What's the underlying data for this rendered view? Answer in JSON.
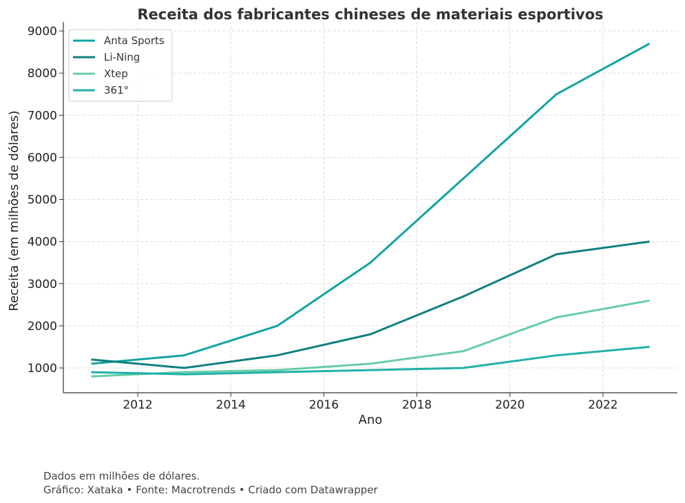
{
  "chart_data": {
    "type": "line",
    "title": "Receita dos fabricantes chineses de materiais esportivos",
    "xlabel": "Ano",
    "ylabel": "Receita (em milhões de dólares)",
    "x": [
      2011,
      2013,
      2015,
      2017,
      2019,
      2021,
      2023
    ],
    "xlim": [
      2010.4,
      2023.6
    ],
    "ylim": [
      400,
      9000
    ],
    "xticks": [
      2012,
      2014,
      2016,
      2018,
      2020,
      2022
    ],
    "yticks": [
      1000,
      2000,
      3000,
      4000,
      5000,
      6000,
      7000,
      8000,
      9000
    ],
    "grid": true,
    "legend_position": "top-left",
    "series": [
      {
        "name": "Anta Sports",
        "color": "#12a3a3",
        "values": [
          1100,
          1300,
          2000,
          3500,
          5500,
          7500,
          8700
        ]
      },
      {
        "name": "Li-Ning",
        "color": "#0f7f7f",
        "values": [
          1200,
          1000,
          1300,
          1800,
          2700,
          3700,
          4000
        ]
      },
      {
        "name": "Xtep",
        "color": "#66ccaa",
        "values": [
          800,
          900,
          950,
          1100,
          1400,
          2200,
          2600
        ]
      },
      {
        "name": "361°",
        "color": "#20b0a8",
        "values": [
          900,
          850,
          900,
          950,
          1000,
          1300,
          1500
        ]
      }
    ]
  },
  "footer": {
    "line1": "Dados em milhões de dólares.",
    "line2": "Gráfico: Xataka • Fonte: Macrotrends • Criado com Datawrapper"
  }
}
